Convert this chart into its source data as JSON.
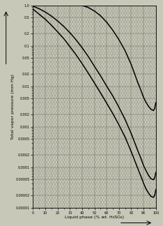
{
  "xlabel": "Liquid phase (% wt. H₂SO₄)",
  "ylabel": "Total vapor pressure (mm Hg)",
  "xlim": [
    0,
    100
  ],
  "ylim": [
    1e-05,
    1.0
  ],
  "y_ticks": [
    1e-05,
    2e-05,
    5e-05,
    0.0001,
    0.0002,
    0.0005,
    0.001,
    0.002,
    0.005,
    0.01,
    0.02,
    0.05,
    0.1,
    0.2,
    0.5,
    1.0
  ],
  "y_tick_labels": [
    "0.00001",
    "0.00002",
    "0.00005",
    "0.0001",
    "0.0002",
    "0.0005",
    "0.001",
    "0.002",
    "0.005",
    "0.01",
    "0.02",
    "0.05",
    "0.1",
    "0.2",
    "0.5",
    "1.0"
  ],
  "x_ticks": [
    0,
    10,
    20,
    30,
    40,
    50,
    60,
    70,
    80,
    90,
    100
  ],
  "x_tick_labels": [
    "0",
    "10",
    "20",
    "30",
    "40",
    "50",
    "60",
    "70",
    "80",
    "90",
    "100"
  ],
  "bg_color": "#c8c8b8",
  "line_color": "#000000",
  "hatch_fg": "#505050",
  "grid_major_color": "#606050",
  "grid_minor_color": "#808070",
  "font_size_label": 4.5,
  "font_size_tick": 3.5,
  "curves": [
    {
      "x": [
        0,
        5,
        10,
        15,
        20,
        25,
        30,
        35,
        40,
        45,
        50,
        55,
        60,
        65,
        70,
        75,
        80,
        85,
        88,
        90,
        92,
        94,
        96,
        98,
        99,
        100
      ],
      "y": [
        0.8,
        0.6,
        0.45,
        0.32,
        0.22,
        0.15,
        0.095,
        0.06,
        0.036,
        0.021,
        0.012,
        0.0068,
        0.0038,
        0.0021,
        0.0011,
        0.00055,
        0.00024,
        9.8e-05,
        5.8e-05,
        4e-05,
        2.9e-05,
        2.3e-05,
        1.9e-05,
        1.8e-05,
        2e-05,
        2.8e-05
      ]
    },
    {
      "x": [
        0,
        5,
        10,
        15,
        20,
        25,
        30,
        35,
        40,
        45,
        50,
        55,
        60,
        65,
        70,
        75,
        80,
        85,
        88,
        90,
        92,
        94,
        96,
        98,
        99,
        100
      ],
      "y": [
        0.95,
        0.82,
        0.68,
        0.54,
        0.41,
        0.3,
        0.21,
        0.14,
        0.089,
        0.054,
        0.031,
        0.018,
        0.01,
        0.0057,
        0.003,
        0.0015,
        0.00067,
        0.00027,
        0.00016,
        0.00011,
        8.2e-05,
        6.3e-05,
        5.2e-05,
        4.9e-05,
        5.4e-05,
        7.5e-05
      ]
    },
    {
      "x": [
        40,
        45,
        50,
        55,
        60,
        65,
        70,
        75,
        80,
        85,
        88,
        90,
        92,
        94,
        96,
        98,
        99,
        100
      ],
      "y": [
        0.99,
        0.88,
        0.72,
        0.55,
        0.38,
        0.24,
        0.14,
        0.075,
        0.034,
        0.013,
        0.0077,
        0.0053,
        0.004,
        0.0032,
        0.0027,
        0.0025,
        0.0028,
        0.004
      ]
    }
  ]
}
